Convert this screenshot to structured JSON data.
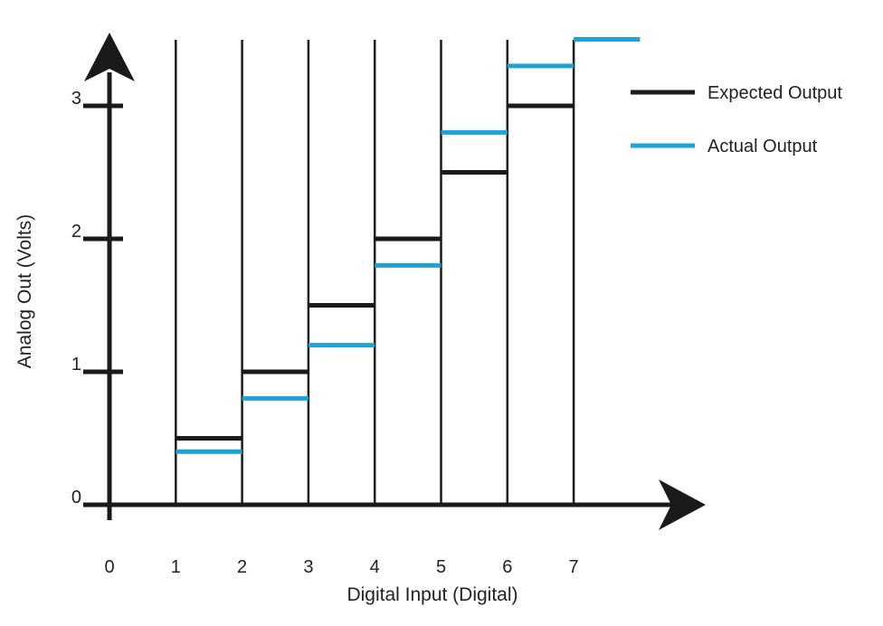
{
  "chart_data": {
    "type": "line",
    "title": "",
    "xlabel": "Digital Input (Digital)",
    "ylabel": "Analog Out (Volts)",
    "x_ticks": [
      "0",
      "1",
      "2",
      "3",
      "4",
      "5",
      "6",
      "7"
    ],
    "y_ticks": [
      "0",
      "1",
      "2",
      "3"
    ],
    "xlim": [
      0,
      8
    ],
    "ylim": [
      0,
      3
    ],
    "grid": false,
    "legend": "top-right",
    "series": [
      {
        "name": "Expected Output",
        "color": "#1a1a1a",
        "steps": [
          {
            "x0": 1,
            "x1": 2,
            "y": 0.5
          },
          {
            "x0": 2,
            "x1": 3,
            "y": 1.0
          },
          {
            "x0": 3,
            "x1": 4,
            "y": 1.5
          },
          {
            "x0": 4,
            "x1": 5,
            "y": 2.0
          },
          {
            "x0": 5,
            "x1": 6,
            "y": 2.5
          },
          {
            "x0": 6,
            "x1": 7,
            "y": 3.0
          }
        ]
      },
      {
        "name": "Actual Output",
        "color": "#1fa3d6",
        "steps": [
          {
            "x0": 0,
            "x1": 1,
            "y": 0.0
          },
          {
            "x0": 1,
            "x1": 2,
            "y": 0.4
          },
          {
            "x0": 2,
            "x1": 3,
            "y": 0.8
          },
          {
            "x0": 3,
            "x1": 4,
            "y": 1.2
          },
          {
            "x0": 4,
            "x1": 5,
            "y": 1.8
          },
          {
            "x0": 5,
            "x1": 6,
            "y": 2.8
          },
          {
            "x0": 6,
            "x1": 7,
            "y": 3.3
          },
          {
            "x0": 7,
            "x1": 8,
            "y": 3.5
          }
        ]
      }
    ]
  }
}
